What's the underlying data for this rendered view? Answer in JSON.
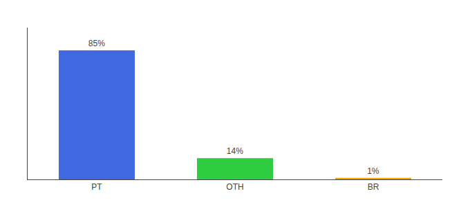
{
  "chart_data": {
    "type": "bar",
    "categories": [
      "PT",
      "OTH",
      "BR"
    ],
    "values": [
      85,
      14,
      1
    ],
    "value_labels": [
      "85%",
      "14%",
      "1%"
    ],
    "colors": [
      "#4169e1",
      "#2ecc40",
      "#f0a500"
    ],
    "ylim": [
      0,
      100
    ],
    "grid": false,
    "data_labels": true,
    "tick_labels": "x"
  }
}
